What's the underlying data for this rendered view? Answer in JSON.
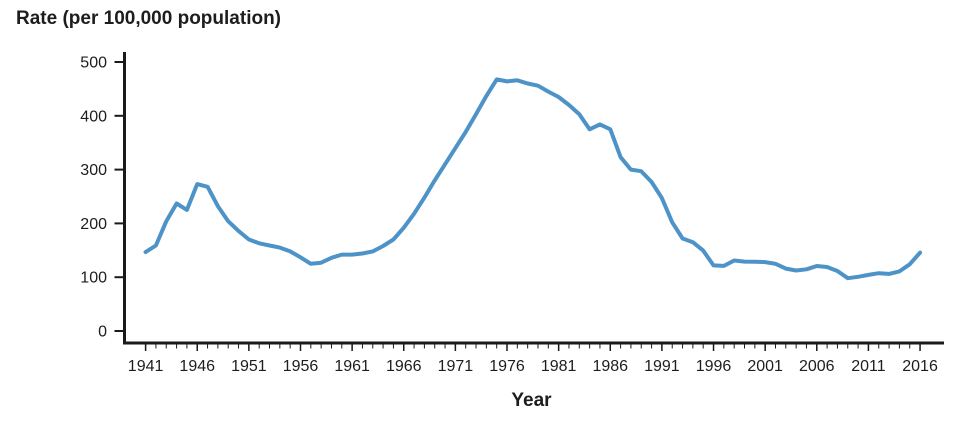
{
  "chart_data": {
    "type": "line",
    "title": "Rate (per 100,000 population)",
    "xlabel": "Year",
    "ylabel": "Rate (per 100,000 population)",
    "legend": "none",
    "grid": false,
    "line_color": "#4D93C8",
    "axis_color": "#1a1a1a",
    "text_color": "#1d1d1f",
    "ylim": [
      0,
      500
    ],
    "xlim": [
      1941,
      2016
    ],
    "yticks": [
      0,
      100,
      200,
      300,
      400,
      500
    ],
    "xticks": [
      1941,
      1946,
      1951,
      1956,
      1961,
      1966,
      1971,
      1976,
      1981,
      1986,
      1991,
      1996,
      2001,
      2006,
      2011,
      2016
    ],
    "minor_xtick_every": 1,
    "x": [
      1941,
      1942,
      1943,
      1944,
      1945,
      1946,
      1947,
      1948,
      1949,
      1950,
      1951,
      1952,
      1953,
      1954,
      1955,
      1956,
      1957,
      1958,
      1959,
      1960,
      1961,
      1962,
      1963,
      1964,
      1965,
      1966,
      1967,
      1968,
      1969,
      1970,
      1971,
      1972,
      1973,
      1974,
      1975,
      1976,
      1977,
      1978,
      1979,
      1980,
      1981,
      1982,
      1983,
      1984,
      1985,
      1986,
      1987,
      1988,
      1989,
      1990,
      1991,
      1992,
      1993,
      1994,
      1995,
      1996,
      1997,
      1998,
      1999,
      2000,
      2001,
      2002,
      2003,
      2004,
      2005,
      2006,
      2007,
      2008,
      2009,
      2010,
      2011,
      2012,
      2013,
      2014,
      2015,
      2016
    ],
    "values": [
      146.7,
      159,
      204,
      237,
      225,
      273,
      268,
      232,
      204,
      186,
      170,
      163,
      159,
      155,
      148,
      137,
      125,
      127,
      136,
      142,
      142,
      144,
      148,
      158,
      170,
      192,
      218,
      248,
      280,
      310,
      340,
      370,
      403,
      437,
      467.7,
      464,
      466,
      460,
      456,
      445,
      435,
      420,
      403,
      375,
      384,
      375,
      323,
      300,
      297,
      277,
      247,
      202,
      172,
      165,
      149.5,
      122,
      121,
      131,
      129,
      128.7,
      128,
      125,
      116,
      112.4,
      114.6,
      120.9,
      118.9,
      111.6,
      98.1,
      100.8,
      104.2,
      107.5,
      106.1,
      110.7,
      123.9,
      145.8
    ]
  }
}
